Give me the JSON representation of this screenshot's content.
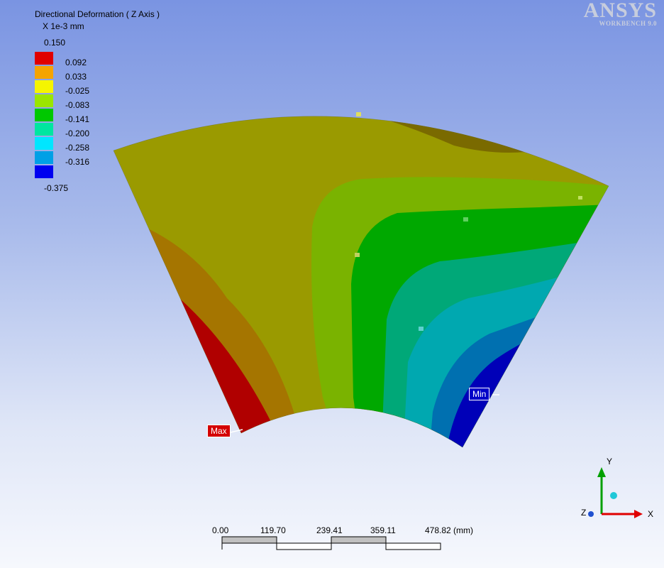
{
  "legend": {
    "title": "Directional Deformation ( Z Axis )",
    "units": "X 1e-3 mm",
    "max_value": "0.150",
    "min_value": "-0.375",
    "bands": [
      {
        "color": "#ff0000",
        "label": "0.092"
      },
      {
        "color": "#ffa500",
        "label": "0.033"
      },
      {
        "color": "#ffff00",
        "label": "-0.025"
      },
      {
        "color": "#9ae600",
        "label": "-0.083"
      },
      {
        "color": "#00cc00",
        "label": "-0.141"
      },
      {
        "color": "#00e6a0",
        "label": "-0.200"
      },
      {
        "color": "#00e6ff",
        "label": "-0.258"
      },
      {
        "color": "#00a0e6",
        "label": "-0.316"
      },
      {
        "color": "#0000ff",
        "label": ""
      }
    ]
  },
  "logo": {
    "brand": "ANSYS",
    "product": "WORKBENCH 9.0"
  },
  "probes": {
    "max_label": "Max",
    "min_label": "Min"
  },
  "scale": {
    "ticks": [
      "0.00",
      "119.70",
      "239.41",
      "359.11",
      "478.82 (mm)"
    ]
  },
  "triad": {
    "x_label": "X",
    "y_label": "Y",
    "z_label": "Z",
    "x_color": "#e00000",
    "y_color": "#00a000"
  }
}
